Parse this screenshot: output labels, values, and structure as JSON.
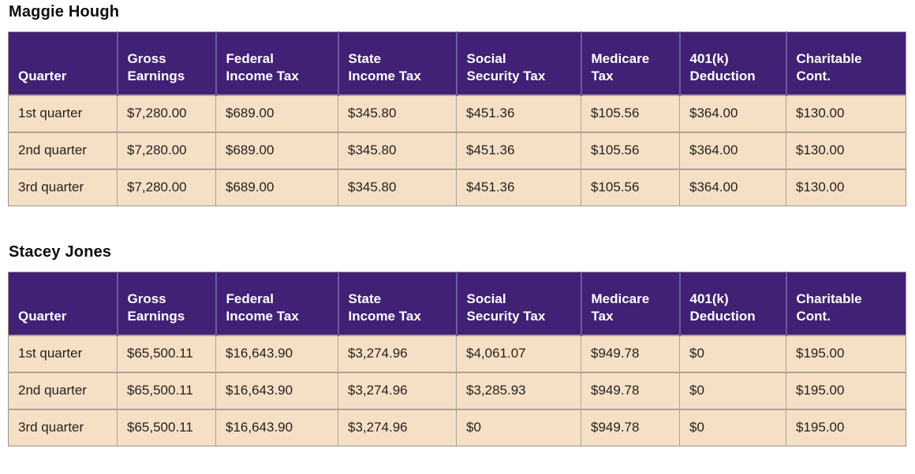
{
  "colors": {
    "header_background": "#402175",
    "header_text": "#ffffff",
    "header_divider": "#6a5b9e",
    "row_background": "#f5e0c6",
    "row_border": "#aba299",
    "body_text": "#26211d",
    "title_text": "#0e0e0e"
  },
  "columns": [
    "Quarter",
    "Gross\nEarnings",
    "Federal\nIncome Tax",
    "State\nIncome Tax",
    "Social\nSecurity Tax",
    "Medicare\nTax",
    "401(k)\nDeduction",
    "Charitable\nCont."
  ],
  "tables": [
    {
      "title": "Maggie Hough",
      "rows": [
        [
          "1st quarter",
          "$7,280.00",
          "$689.00",
          "$345.80",
          "$451.36",
          "$105.56",
          "$364.00",
          "$130.00"
        ],
        [
          "2nd quarter",
          "$7,280.00",
          "$689.00",
          "$345.80",
          "$451.36",
          "$105.56",
          "$364.00",
          "$130.00"
        ],
        [
          "3rd quarter",
          "$7,280.00",
          "$689.00",
          "$345.80",
          "$451.36",
          "$105.56",
          "$364.00",
          "$130.00"
        ]
      ]
    },
    {
      "title": "Stacey Jones",
      "rows": [
        [
          "1st quarter",
          "$65,500.11",
          "$16,643.90",
          "$3,274.96",
          "$4,061.07",
          "$949.78",
          "$0",
          "$195.00"
        ],
        [
          "2nd quarter",
          "$65,500.11",
          "$16,643.90",
          "$3,274.96",
          "$3,285.93",
          "$949.78",
          "$0",
          "$195.00"
        ],
        [
          "3rd quarter",
          "$65,500.11",
          "$16,643.90",
          "$3,274.96",
          "$0",
          "$949.78",
          "$0",
          "$195.00"
        ]
      ]
    }
  ]
}
